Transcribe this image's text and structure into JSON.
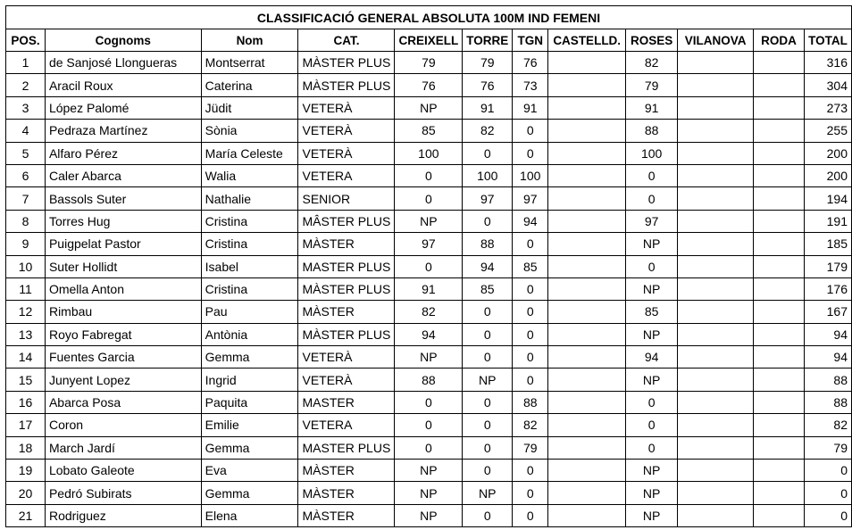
{
  "title": "CLASSIFICACIÓ GENERAL ABSOLUTA 100M IND FEMENI",
  "headers": [
    "POS.",
    "Cognoms",
    "Nom",
    "CAT.",
    "CREIXELL",
    "TORRE",
    "TGN",
    "CASTELLD.",
    "ROSES",
    "VILANOVA",
    "RODA",
    "TOTAL"
  ],
  "rows": [
    [
      "1",
      "de Sanjosé Llongueras",
      "Montserrat",
      "MÀSTER PLUS",
      "79",
      "79",
      "76",
      "",
      "82",
      "",
      "",
      "316"
    ],
    [
      "2",
      "Aracil Roux",
      "Caterina",
      "MÀSTER PLUS",
      "76",
      "76",
      "73",
      "",
      "79",
      "",
      "",
      "304"
    ],
    [
      "3",
      "López Palomé",
      "Jüdit",
      "VETERÀ",
      "NP",
      "91",
      "91",
      "",
      "91",
      "",
      "",
      "273"
    ],
    [
      "4",
      "Pedraza Martínez",
      "Sònia",
      "VETERÀ",
      "85",
      "82",
      "0",
      "",
      "88",
      "",
      "",
      "255"
    ],
    [
      "5",
      "Alfaro Pérez",
      "María Celeste",
      "VETERÀ",
      "100",
      "0",
      "0",
      "",
      "100",
      "",
      "",
      "200"
    ],
    [
      "6",
      "Caler Abarca",
      "Walia",
      "VETERA",
      "0",
      "100",
      "100",
      "",
      "0",
      "",
      "",
      "200"
    ],
    [
      "7",
      "Bassols Suter",
      "Nathalie",
      "SENIOR",
      "0",
      "97",
      "97",
      "",
      "0",
      "",
      "",
      "194"
    ],
    [
      "8",
      "Torres Hug",
      "Cristina",
      "MÂSTER PLUS",
      "NP",
      "0",
      "94",
      "",
      "97",
      "",
      "",
      "191"
    ],
    [
      "9",
      "Puigpelat Pastor",
      "Cristina",
      "MÀSTER",
      "97",
      "88",
      "0",
      "",
      "NP",
      "",
      "",
      "185"
    ],
    [
      "10",
      "Suter Hollidt",
      "Isabel",
      "MASTER PLUS",
      "0",
      "94",
      "85",
      "",
      "0",
      "",
      "",
      "179"
    ],
    [
      "11",
      "Omella Anton",
      "Cristina",
      "MÀSTER PLUS",
      "91",
      "85",
      "0",
      "",
      "NP",
      "",
      "",
      "176"
    ],
    [
      "12",
      "Rimbau",
      "Pau",
      "MÀSTER",
      "82",
      "0",
      "0",
      "",
      "85",
      "",
      "",
      "167"
    ],
    [
      "13",
      "Royo Fabregat",
      "Antònia",
      "MÀSTER PLUS",
      "94",
      "0",
      "0",
      "",
      "NP",
      "",
      "",
      "94"
    ],
    [
      "14",
      "Fuentes Garcia",
      "Gemma",
      "VETERÀ",
      "NP",
      "0",
      "0",
      "",
      "94",
      "",
      "",
      "94"
    ],
    [
      "15",
      "Junyent Lopez",
      "Ingrid",
      "VETERÀ",
      "88",
      "NP",
      "0",
      "",
      "NP",
      "",
      "",
      "88"
    ],
    [
      "16",
      "Abarca Posa",
      "Paquita",
      "MASTER",
      "0",
      "0",
      "88",
      "",
      "0",
      "",
      "",
      "88"
    ],
    [
      "17",
      "Coron",
      "Emilie",
      "VETERA",
      "0",
      "0",
      "82",
      "",
      "0",
      "",
      "",
      "82"
    ],
    [
      "18",
      "March Jardí",
      "Gemma",
      "MASTER PLUS",
      "0",
      "0",
      "79",
      "",
      "0",
      "",
      "",
      "79"
    ],
    [
      "19",
      "Lobato Galeote",
      "Eva",
      "MÀSTER",
      "NP",
      "0",
      "0",
      "",
      "NP",
      "",
      "",
      "0"
    ],
    [
      "20",
      "Pedró Subirats",
      "Gemma",
      "MÀSTER",
      "NP",
      "NP",
      "0",
      "",
      "NP",
      "",
      "",
      "0"
    ],
    [
      "21",
      "Rodriguez",
      "Elena",
      "MÀSTER",
      "NP",
      "0",
      "0",
      "",
      "NP",
      "",
      "",
      "0"
    ]
  ]
}
